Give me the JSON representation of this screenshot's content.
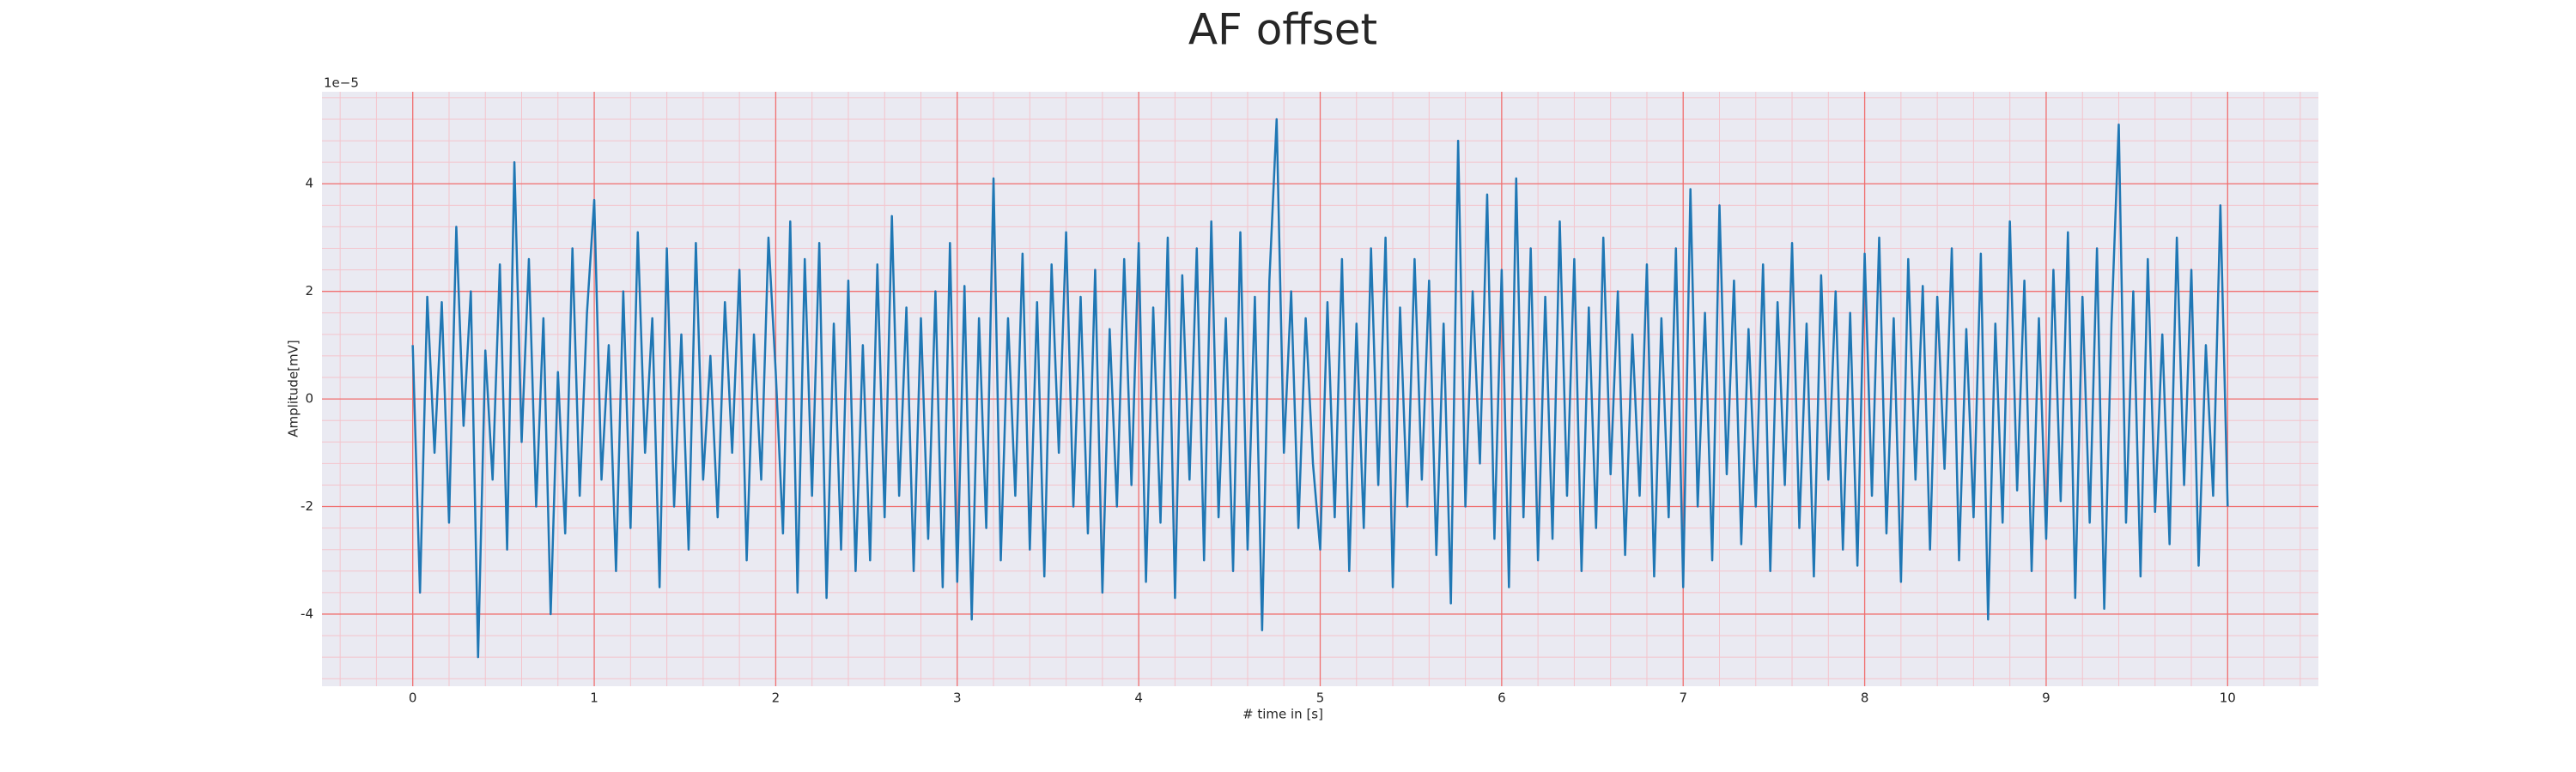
{
  "chart_data": {
    "type": "line",
    "title": "AF offset",
    "xlabel": "# time in [s]",
    "ylabel": "Amplitude[mV]",
    "offset_text": "1e−5",
    "xlim": [
      -0.5,
      10.5
    ],
    "xticks": [
      0,
      1,
      2,
      3,
      4,
      5,
      6,
      7,
      8,
      9,
      10
    ],
    "ylim": [
      -5.34,
      5.71
    ],
    "yticks": [
      -4,
      -2,
      0,
      2,
      4
    ],
    "grid": true,
    "grid_color": "#f07070",
    "minor_grid": true,
    "minor_grid_color": "#f4c4cc",
    "minor_divisions": 5,
    "background": "#eaeaf2",
    "x": [
      0,
      0.04,
      0.08,
      0.12,
      0.16,
      0.2,
      0.24,
      0.28,
      0.32,
      0.36,
      0.4,
      0.44,
      0.48,
      0.52,
      0.56,
      0.6,
      0.64,
      0.68,
      0.72,
      0.76,
      0.8,
      0.84,
      0.88,
      0.92,
      0.96,
      1,
      1.04,
      1.08,
      1.12,
      1.16,
      1.2,
      1.24,
      1.28,
      1.32,
      1.36,
      1.4,
      1.44,
      1.48,
      1.52,
      1.56,
      1.6,
      1.64,
      1.68,
      1.72,
      1.76,
      1.8,
      1.84,
      1.88,
      1.92,
      1.96,
      2,
      2.04,
      2.08,
      2.12,
      2.16,
      2.2,
      2.24,
      2.28,
      2.32,
      2.36,
      2.4,
      2.44,
      2.48,
      2.52,
      2.56,
      2.6,
      2.64,
      2.68,
      2.72,
      2.76,
      2.8,
      2.84,
      2.88,
      2.92,
      2.96,
      3,
      3.04,
      3.08,
      3.12,
      3.16,
      3.2,
      3.24,
      3.28,
      3.32,
      3.36,
      3.4,
      3.44,
      3.48,
      3.52,
      3.56,
      3.6,
      3.64,
      3.68,
      3.72,
      3.76,
      3.8,
      3.84,
      3.88,
      3.92,
      3.96,
      4,
      4.04,
      4.08,
      4.12,
      4.16,
      4.2,
      4.24,
      4.28,
      4.32,
      4.36,
      4.4,
      4.44,
      4.48,
      4.52,
      4.56,
      4.6,
      4.64,
      4.68,
      4.72,
      4.76,
      4.8,
      4.84,
      4.88,
      4.92,
      4.96,
      5,
      5.04,
      5.08,
      5.12,
      5.16,
      5.2,
      5.24,
      5.28,
      5.32,
      5.36,
      5.4,
      5.44,
      5.48,
      5.52,
      5.56,
      5.6,
      5.64,
      5.68,
      5.72,
      5.76,
      5.8,
      5.84,
      5.88,
      5.92,
      5.96,
      6,
      6.04,
      6.08,
      6.12,
      6.16,
      6.2,
      6.24,
      6.28,
      6.32,
      6.36,
      6.4,
      6.44,
      6.48,
      6.52,
      6.56,
      6.6,
      6.64,
      6.68,
      6.72,
      6.76,
      6.8,
      6.84,
      6.88,
      6.92,
      6.96,
      7,
      7.04,
      7.08,
      7.12,
      7.16,
      7.2,
      7.24,
      7.28,
      7.32,
      7.36,
      7.4,
      7.44,
      7.48,
      7.52,
      7.56,
      7.6,
      7.64,
      7.68,
      7.72,
      7.76,
      7.8,
      7.84,
      7.88,
      7.92,
      7.96,
      8,
      8.04,
      8.08,
      8.12,
      8.16,
      8.2,
      8.24,
      8.28,
      8.32,
      8.36,
      8.4,
      8.44,
      8.48,
      8.52,
      8.56,
      8.6,
      8.64,
      8.68,
      8.72,
      8.76,
      8.8,
      8.84,
      8.88,
      8.92,
      8.96,
      9,
      9.04,
      9.08,
      9.12,
      9.16,
      9.2,
      9.24,
      9.28,
      9.32,
      9.36,
      9.4,
      9.44,
      9.48,
      9.52,
      9.56,
      9.6,
      9.64,
      9.68,
      9.72,
      9.76,
      9.8,
      9.84,
      9.88,
      9.92,
      9.96,
      10
    ],
    "series": [
      {
        "name": "AF offset",
        "color": "#1f77b4",
        "values": [
          1.0,
          -3.6,
          1.9,
          -1.0,
          1.8,
          -2.3,
          3.2,
          -0.5,
          2.0,
          -4.8,
          0.9,
          -1.5,
          2.5,
          -2.8,
          4.4,
          -0.8,
          2.6,
          -2.0,
          1.5,
          -4.0,
          0.5,
          -2.5,
          2.8,
          -1.8,
          1.6,
          3.7,
          -1.5,
          1.0,
          -3.2,
          2.0,
          -2.4,
          3.1,
          -1.0,
          1.5,
          -3.5,
          2.8,
          -2.0,
          1.2,
          -2.8,
          2.9,
          -1.5,
          0.8,
          -2.2,
          1.8,
          -1.0,
          2.4,
          -3.0,
          1.2,
          -1.5,
          3.0,
          0.5,
          -2.5,
          3.3,
          -3.6,
          2.6,
          -1.8,
          2.9,
          -3.7,
          1.4,
          -2.8,
          2.2,
          -3.2,
          1.0,
          -3.0,
          2.5,
          -2.2,
          3.4,
          -1.8,
          1.7,
          -3.2,
          1.5,
          -2.6,
          2.0,
          -3.5,
          2.9,
          -3.4,
          2.1,
          -4.1,
          1.5,
          -2.4,
          4.1,
          -3.0,
          1.5,
          -1.8,
          2.7,
          -2.8,
          1.8,
          -3.3,
          2.5,
          -1.0,
          3.1,
          -2.0,
          1.9,
          -2.5,
          2.4,
          -3.6,
          1.3,
          -2.0,
          2.6,
          -1.6,
          2.9,
          -3.4,
          1.7,
          -2.3,
          3.0,
          -3.7,
          2.3,
          -1.5,
          2.8,
          -3.0,
          3.3,
          -2.2,
          1.5,
          -3.2,
          3.1,
          -2.8,
          1.9,
          -4.3,
          2.2,
          5.2,
          -1.0,
          2.0,
          -2.4,
          1.5,
          -1.2,
          -2.8,
          1.8,
          -2.2,
          2.6,
          -3.2,
          1.4,
          -2.4,
          2.8,
          -1.6,
          3.0,
          -3.5,
          1.7,
          -2.0,
          2.6,
          -1.5,
          2.2,
          -2.9,
          1.4,
          -3.8,
          4.8,
          -2.0,
          2.0,
          -1.2,
          3.8,
          -2.6,
          2.4,
          -3.5,
          4.1,
          -2.2,
          2.8,
          -3.0,
          1.9,
          -2.6,
          3.3,
          -1.8,
          2.6,
          -3.2,
          1.7,
          -2.4,
          3.0,
          -1.4,
          2.0,
          -2.9,
          1.2,
          -1.8,
          2.5,
          -3.3,
          1.5,
          -2.2,
          2.8,
          -3.5,
          3.9,
          -2.0,
          1.6,
          -3.0,
          3.6,
          -1.4,
          2.2,
          -2.7,
          1.3,
          -2.0,
          2.5,
          -3.2,
          1.8,
          -1.6,
          2.9,
          -2.4,
          1.4,
          -3.3,
          2.3,
          -1.5,
          2.0,
          -2.8,
          1.6,
          -3.1,
          2.7,
          -1.8,
          3.0,
          -2.5,
          1.5,
          -3.4,
          2.6,
          -1.5,
          2.1,
          -2.8,
          1.9,
          -1.3,
          2.8,
          -3.0,
          1.3,
          -2.2,
          2.7,
          -4.1,
          1.4,
          -2.3,
          3.3,
          -1.7,
          2.2,
          -3.2,
          1.5,
          -2.6,
          2.4,
          -1.9,
          3.1,
          -3.7,
          1.9,
          -2.3,
          2.8,
          -3.9,
          1.4,
          5.1,
          -2.3,
          2.0,
          -3.3,
          2.6,
          -2.1,
          1.2,
          -2.7,
          3.0,
          -1.6,
          2.4,
          -3.1,
          1.0,
          -1.8,
          3.6,
          -2.0
        ]
      }
    ]
  }
}
